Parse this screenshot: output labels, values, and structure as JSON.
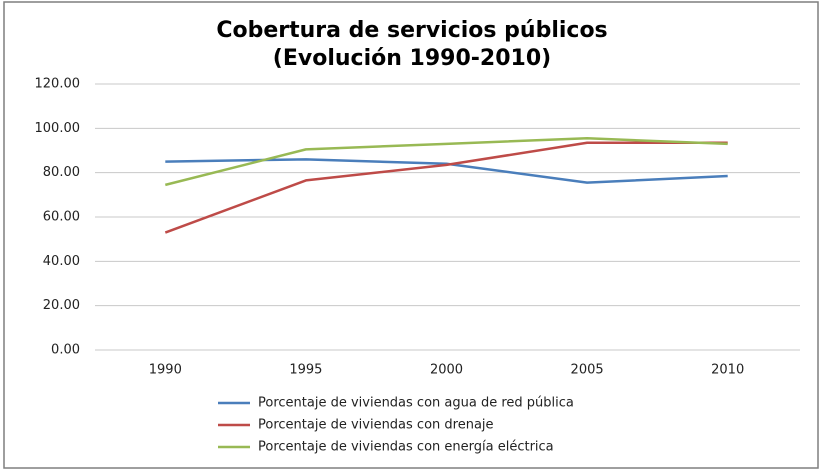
{
  "chart_data": {
    "type": "line",
    "title": [
      "Cobertura de servicios públicos",
      "(Evolución 1990-2010)"
    ],
    "categories": [
      "1990",
      "1995",
      "2000",
      "2005",
      "2010"
    ],
    "series": [
      {
        "name": "Porcentaje de viviendas con agua de red pública",
        "color": "#4a7ebb",
        "values": [
          85,
          86,
          84,
          75.5,
          78.5
        ]
      },
      {
        "name": "Porcentaje de viviendas con drenaje",
        "color": "#be4b48",
        "values": [
          53,
          76.5,
          83.5,
          93.5,
          93.5
        ]
      },
      {
        "name": "Porcentaje de viviendas con energía eléctrica",
        "color": "#98b954",
        "values": [
          74.5,
          90.5,
          93,
          95.5,
          93
        ]
      }
    ],
    "ylim": [
      0,
      120
    ],
    "yticks": [
      {
        "value": 0,
        "label": "0.00"
      },
      {
        "value": 20,
        "label": "20.00"
      },
      {
        "value": 40,
        "label": "40.00"
      },
      {
        "value": 60,
        "label": "60.00"
      },
      {
        "value": 80,
        "label": "80.00"
      },
      {
        "value": 100,
        "label": "100.00"
      },
      {
        "value": 120,
        "label": "120.00"
      }
    ],
    "grid": true,
    "legend": "bottom"
  }
}
